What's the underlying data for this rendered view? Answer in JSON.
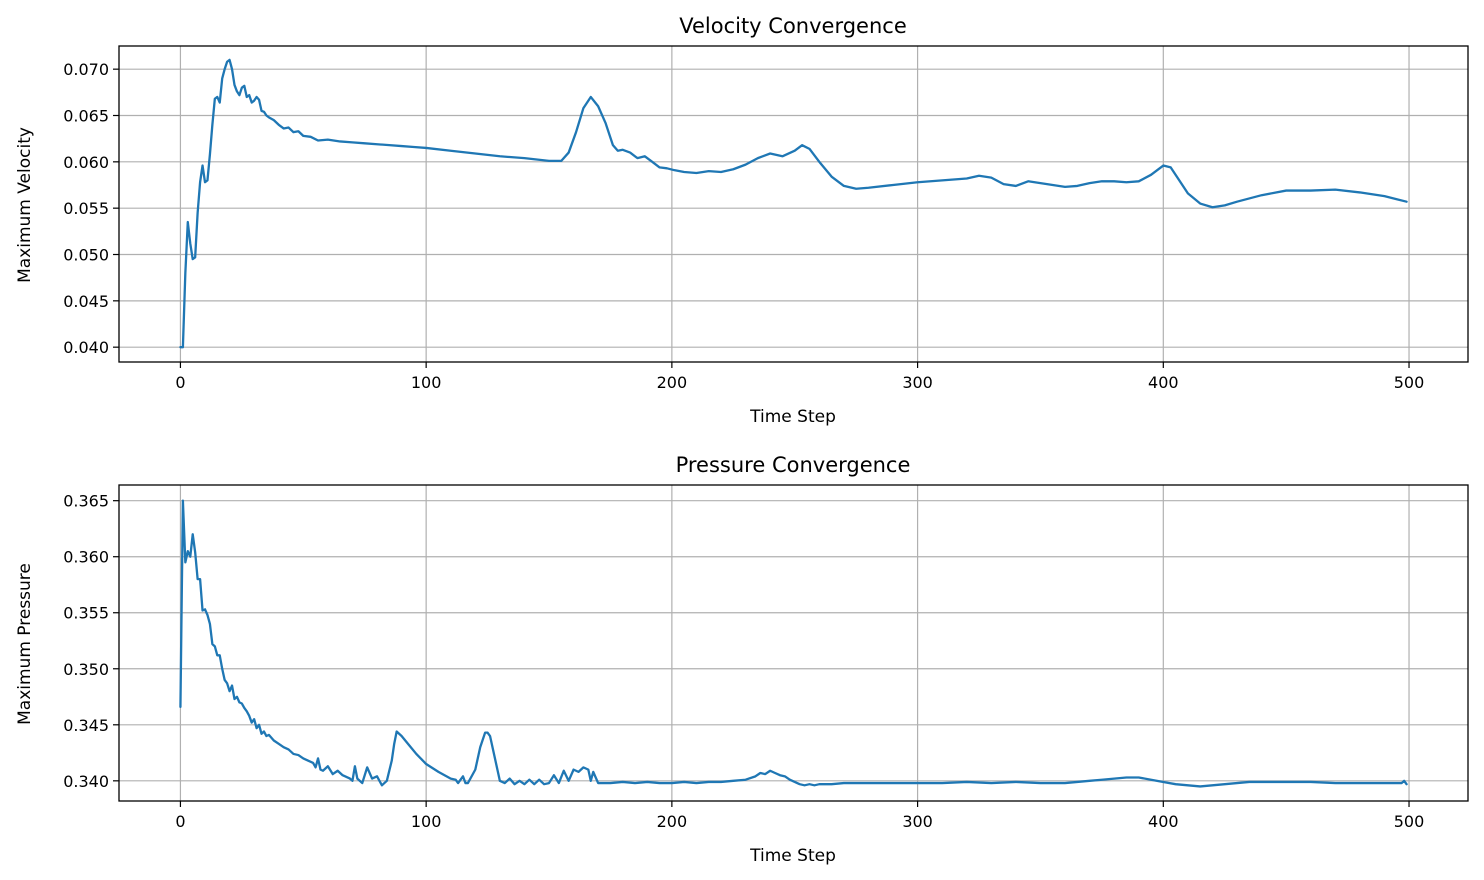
{
  "chart_data": [
    {
      "type": "line",
      "title": "Velocity Convergence",
      "xlabel": "Time Step",
      "ylabel": "Maximum Velocity",
      "xlim": [
        -25,
        524
      ],
      "ylim": [
        0.0384,
        0.0725
      ],
      "xticks": [
        0,
        100,
        200,
        300,
        400,
        500
      ],
      "xtick_labels": [
        "0",
        "100",
        "200",
        "300",
        "400",
        "500"
      ],
      "yticks": [
        0.04,
        0.045,
        0.05,
        0.055,
        0.06,
        0.065,
        0.07
      ],
      "ytick_labels": [
        "0.040",
        "0.045",
        "0.050",
        "0.055",
        "0.060",
        "0.065",
        "0.070"
      ],
      "grid": true,
      "color": "#1f77b4",
      "series": [
        {
          "x": [
            0,
            1,
            2,
            3,
            4,
            5,
            6,
            7,
            8,
            9,
            10,
            11,
            12,
            13,
            14,
            15,
            16,
            17,
            18,
            19,
            20,
            21,
            22,
            23,
            24,
            25,
            26,
            27,
            28,
            29,
            30,
            31,
            32,
            33,
            34,
            35,
            36,
            38,
            40,
            42,
            44,
            46,
            48,
            50,
            53,
            56,
            60,
            65,
            70,
            75,
            80,
            85,
            90,
            95,
            100,
            110,
            120,
            130,
            140,
            150,
            155,
            158,
            161,
            164,
            167,
            170,
            173,
            176,
            178,
            180,
            183,
            186,
            189,
            192,
            195,
            198,
            201,
            205,
            210,
            215,
            220,
            225,
            230,
            235,
            240,
            245,
            250,
            253,
            256,
            260,
            265,
            270,
            275,
            280,
            290,
            300,
            310,
            320,
            325,
            330,
            335,
            340,
            345,
            350,
            355,
            360,
            365,
            370,
            375,
            380,
            385,
            390,
            395,
            400,
            403,
            406,
            410,
            415,
            420,
            425,
            430,
            440,
            450,
            460,
            470,
            480,
            490,
            499
          ],
          "y": [
            0.04,
            0.04,
            0.048,
            0.0535,
            0.0512,
            0.0495,
            0.0497,
            0.0545,
            0.0578,
            0.0596,
            0.0578,
            0.058,
            0.0608,
            0.064,
            0.0668,
            0.067,
            0.0664,
            0.069,
            0.07,
            0.0708,
            0.071,
            0.07,
            0.0683,
            0.0676,
            0.0672,
            0.068,
            0.0682,
            0.067,
            0.0672,
            0.0664,
            0.0666,
            0.067,
            0.0667,
            0.0655,
            0.0654,
            0.065,
            0.0648,
            0.0645,
            0.064,
            0.0636,
            0.0637,
            0.0632,
            0.0633,
            0.0628,
            0.0627,
            0.0623,
            0.0624,
            0.0622,
            0.0621,
            0.062,
            0.0619,
            0.0618,
            0.0617,
            0.0616,
            0.0615,
            0.0612,
            0.0609,
            0.0606,
            0.0604,
            0.0601,
            0.0601,
            0.061,
            0.0632,
            0.0658,
            0.067,
            0.066,
            0.0642,
            0.0618,
            0.0612,
            0.0613,
            0.061,
            0.0604,
            0.0606,
            0.06,
            0.0594,
            0.0593,
            0.0591,
            0.0589,
            0.0588,
            0.059,
            0.0589,
            0.0592,
            0.0597,
            0.0604,
            0.0609,
            0.0606,
            0.0612,
            0.0618,
            0.0614,
            0.06,
            0.0584,
            0.0574,
            0.0571,
            0.0572,
            0.0575,
            0.0578,
            0.058,
            0.0582,
            0.0585,
            0.0583,
            0.0576,
            0.0574,
            0.0579,
            0.0577,
            0.0575,
            0.0573,
            0.0574,
            0.0577,
            0.0579,
            0.0579,
            0.0578,
            0.0579,
            0.0586,
            0.0596,
            0.0594,
            0.0582,
            0.0566,
            0.0555,
            0.0551,
            0.0553,
            0.0557,
            0.0564,
            0.0569,
            0.0569,
            0.057,
            0.0567,
            0.0563,
            0.0557
          ]
        }
      ]
    },
    {
      "type": "line",
      "title": "Pressure Convergence",
      "xlabel": "Time Step",
      "ylabel": "Maximum Pressure",
      "xlim": [
        -25,
        524
      ],
      "ylim": [
        0.3382,
        0.3664
      ],
      "xticks": [
        0,
        100,
        200,
        300,
        400,
        500
      ],
      "xtick_labels": [
        "0",
        "100",
        "200",
        "300",
        "400",
        "500"
      ],
      "yticks": [
        0.34,
        0.345,
        0.35,
        0.355,
        0.36,
        0.365
      ],
      "ytick_labels": [
        "0.340",
        "0.345",
        "0.350",
        "0.355",
        "0.360",
        "0.365"
      ],
      "grid": true,
      "color": "#1f77b4",
      "series": [
        {
          "x": [
            0,
            1,
            2,
            3,
            4,
            5,
            6,
            7,
            8,
            9,
            10,
            11,
            12,
            13,
            14,
            15,
            16,
            17,
            18,
            19,
            20,
            21,
            22,
            23,
            24,
            25,
            26,
            27,
            28,
            29,
            30,
            31,
            32,
            33,
            34,
            35,
            36,
            38,
            40,
            42,
            44,
            46,
            48,
            50,
            52,
            54,
            55,
            56,
            57,
            58,
            60,
            62,
            64,
            66,
            68,
            69,
            70,
            71,
            72,
            74,
            76,
            78,
            80,
            82,
            84,
            86,
            87,
            88,
            90,
            93,
            96,
            100,
            105,
            110,
            112,
            113,
            115,
            116,
            117,
            120,
            122,
            124,
            125,
            126,
            128,
            130,
            132,
            133,
            134,
            136,
            138,
            140,
            142,
            144,
            146,
            148,
            150,
            152,
            154,
            156,
            158,
            160,
            162,
            164,
            166,
            167,
            168,
            170,
            175,
            180,
            185,
            190,
            195,
            200,
            205,
            210,
            215,
            220,
            225,
            230,
            234,
            236,
            238,
            240,
            242,
            244,
            246,
            248,
            250,
            252,
            254,
            256,
            258,
            260,
            265,
            270,
            280,
            290,
            300,
            310,
            320,
            330,
            340,
            350,
            360,
            370,
            375,
            380,
            385,
            390,
            395,
            400,
            405,
            410,
            415,
            420,
            425,
            430,
            435,
            440,
            445,
            450,
            460,
            470,
            480,
            490,
            496,
            497,
            498,
            499
          ],
          "y": [
            0.3466,
            0.365,
            0.3595,
            0.3605,
            0.36,
            0.362,
            0.3604,
            0.358,
            0.358,
            0.3552,
            0.3553,
            0.3548,
            0.354,
            0.3522,
            0.352,
            0.3512,
            0.3512,
            0.35,
            0.349,
            0.3487,
            0.348,
            0.3485,
            0.3473,
            0.3475,
            0.347,
            0.3469,
            0.3465,
            0.3462,
            0.3458,
            0.3452,
            0.3455,
            0.3447,
            0.345,
            0.3442,
            0.3444,
            0.344,
            0.3441,
            0.3436,
            0.3433,
            0.343,
            0.3428,
            0.3424,
            0.3423,
            0.342,
            0.3418,
            0.3416,
            0.3412,
            0.342,
            0.341,
            0.3409,
            0.3413,
            0.3406,
            0.3409,
            0.3405,
            0.3403,
            0.3402,
            0.34,
            0.3413,
            0.3402,
            0.3398,
            0.3412,
            0.3402,
            0.3404,
            0.3396,
            0.34,
            0.3418,
            0.3433,
            0.3444,
            0.344,
            0.3432,
            0.3424,
            0.3415,
            0.3408,
            0.3402,
            0.3401,
            0.3398,
            0.3404,
            0.3398,
            0.3398,
            0.341,
            0.343,
            0.3443,
            0.3443,
            0.344,
            0.342,
            0.34,
            0.3398,
            0.34,
            0.3402,
            0.3397,
            0.34,
            0.3397,
            0.3401,
            0.3397,
            0.3401,
            0.3397,
            0.3398,
            0.3405,
            0.3398,
            0.3409,
            0.34,
            0.341,
            0.3408,
            0.3412,
            0.341,
            0.34,
            0.3408,
            0.3398,
            0.3398,
            0.3399,
            0.3398,
            0.3399,
            0.3398,
            0.3398,
            0.3399,
            0.3398,
            0.3399,
            0.3399,
            0.34,
            0.3401,
            0.3404,
            0.3407,
            0.3406,
            0.3409,
            0.3407,
            0.3405,
            0.3404,
            0.3401,
            0.3399,
            0.3397,
            0.3396,
            0.3397,
            0.3396,
            0.3397,
            0.3397,
            0.3398,
            0.3398,
            0.3398,
            0.3398,
            0.3398,
            0.3399,
            0.3398,
            0.3399,
            0.3398,
            0.3398,
            0.34,
            0.3401,
            0.3402,
            0.3403,
            0.3403,
            0.3401,
            0.3399,
            0.3397,
            0.3396,
            0.3395,
            0.3396,
            0.3397,
            0.3398,
            0.3399,
            0.3399,
            0.3399,
            0.3399,
            0.3399,
            0.3398,
            0.3398,
            0.3398,
            0.3398,
            0.3398,
            0.34,
            0.3397
          ]
        }
      ]
    }
  ]
}
